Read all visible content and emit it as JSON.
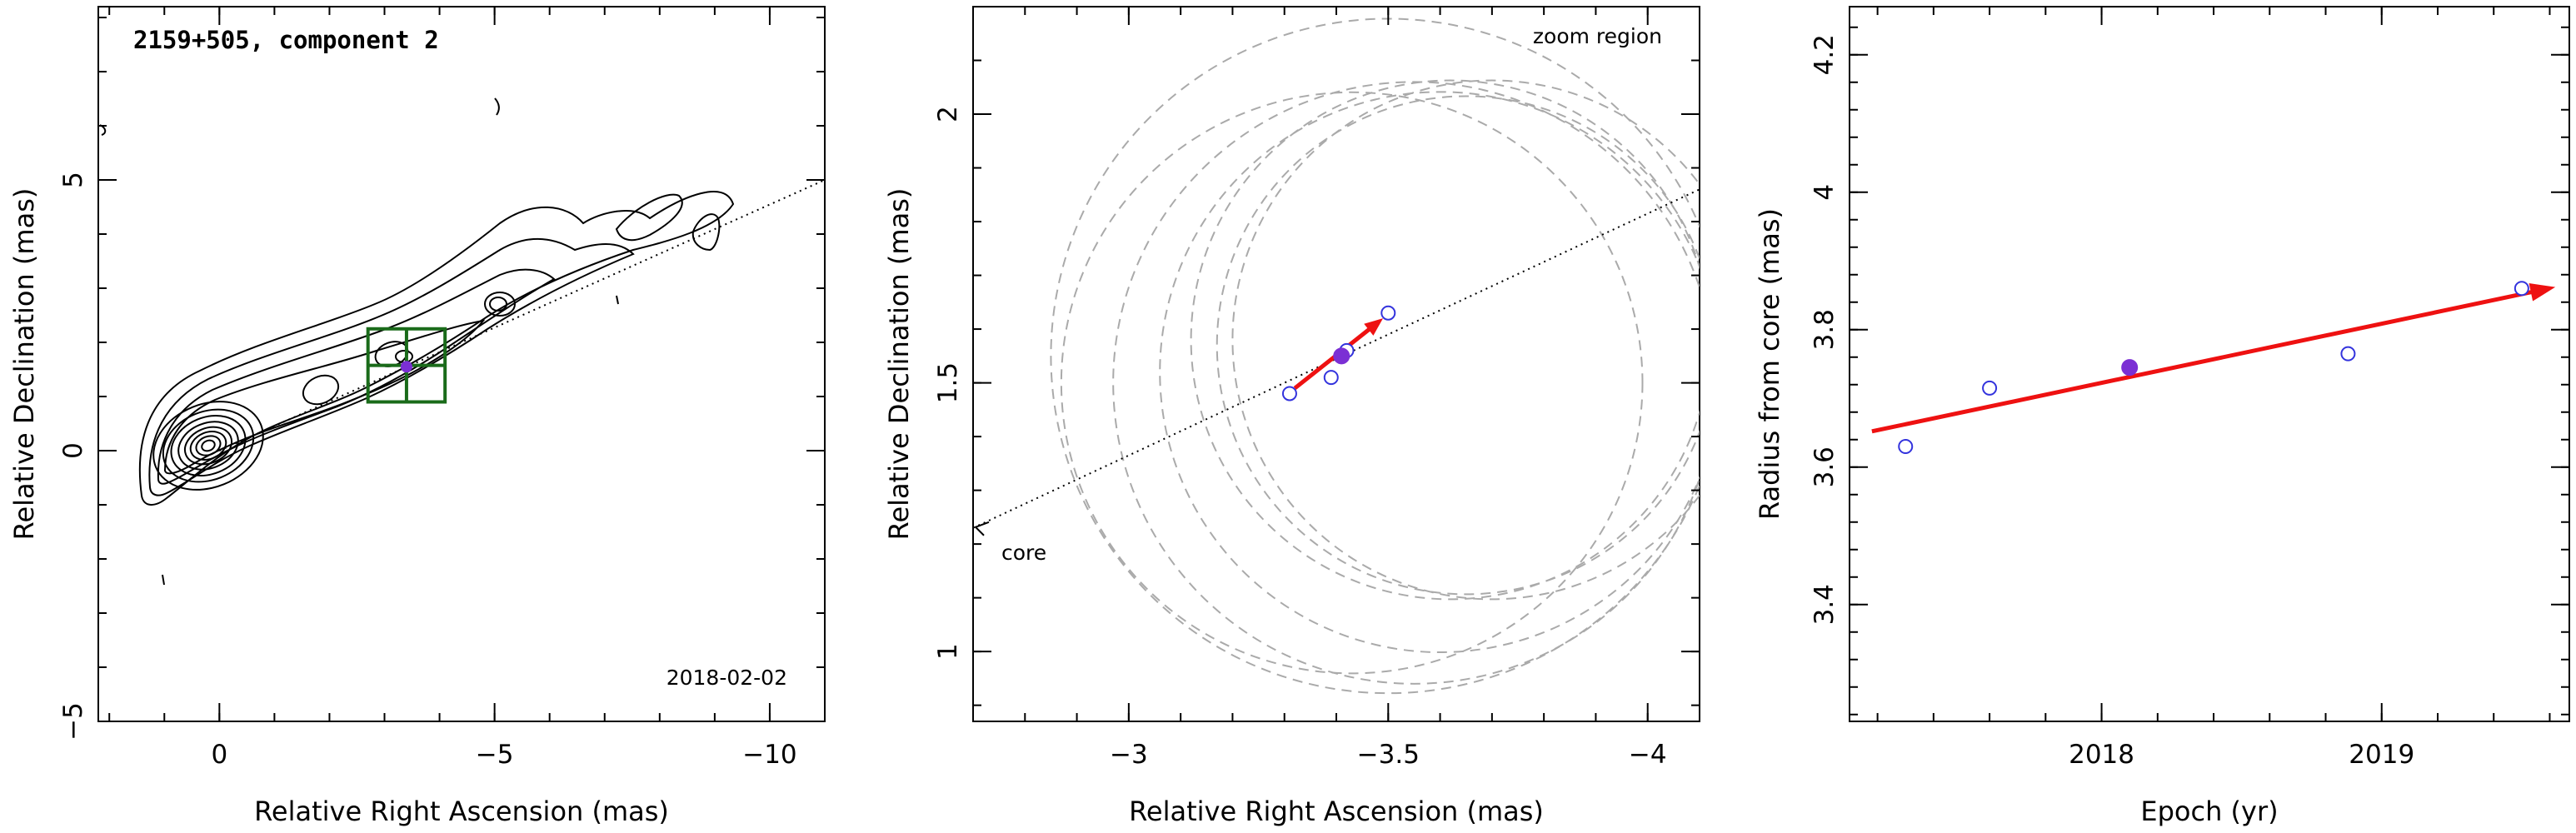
{
  "chart_data": [
    {
      "type": "scatter",
      "panel": "contour-map",
      "title": "2159+505, component 2",
      "date_label": "2018-02-02",
      "xlabel": "Relative Right Ascension (mas)",
      "ylabel": "Relative Declination (mas)",
      "xlim": [
        2.2,
        -11
      ],
      "ylim": [
        -5,
        8.2
      ],
      "xticks": [
        0,
        -5,
        -10
      ],
      "xtick_labels": [
        "0",
        "−5",
        "−10"
      ],
      "yticks": [
        -5,
        0,
        5
      ],
      "ytick_labels": [
        "−5",
        "0",
        "5"
      ],
      "jet_axis": {
        "from": [
          0,
          0
        ],
        "to": [
          -11,
          5.0
        ]
      },
      "component_position": {
        "x": -3.4,
        "y": 1.55
      },
      "zoom_box": {
        "x": [
          -2.7,
          -4.1
        ],
        "y": [
          0.9,
          2.25
        ]
      },
      "grid": false,
      "colors": {
        "contour": "#000000",
        "zoom_box": "#1a6b1a",
        "marker": "#7b2fd4"
      }
    },
    {
      "type": "scatter",
      "panel": "zoom-region",
      "region_label": "zoom region",
      "core_label": "core",
      "xlabel": "Relative Right Ascension (mas)",
      "ylabel": "Relative Declination (mas)",
      "xlim": [
        -2.7,
        -4.1
      ],
      "ylim": [
        0.87,
        2.2
      ],
      "xticks": [
        -3,
        -3.5,
        -4
      ],
      "xtick_labels": [
        "−3",
        "−3.5",
        "−4"
      ],
      "yticks": [
        1,
        1.5,
        2
      ],
      "ytick_labels": [
        "1",
        "1.5",
        "2"
      ],
      "series": [
        {
          "marker": "open-circle",
          "color": "#3333dd",
          "x": [
            -3.31,
            -3.39,
            -3.42,
            -3.5
          ],
          "y": [
            1.48,
            1.51,
            1.56,
            1.63
          ]
        },
        {
          "marker": "filled-circle",
          "color": "#7b2fd4",
          "x": [
            -3.41
          ],
          "y": [
            1.55
          ]
        }
      ],
      "velocity_vector": {
        "from": [
          -3.32,
          1.49
        ],
        "to": [
          -3.49,
          1.62
        ],
        "color": "#ee1111"
      },
      "jet_axis": {
        "from": [
          -2.7,
          1.23
        ],
        "to": [
          -4.1,
          1.86
        ]
      },
      "beam_circles": [
        {
          "x": -3.5,
          "y": 1.55,
          "r": 0.65
        },
        {
          "x": -3.55,
          "y": 1.5,
          "r": 0.58
        },
        {
          "x": -3.43,
          "y": 1.5,
          "r": 0.56
        },
        {
          "x": -3.6,
          "y": 1.52,
          "r": 0.54
        },
        {
          "x": -3.62,
          "y": 1.58,
          "r": 0.5
        },
        {
          "x": -3.65,
          "y": 1.57,
          "r": 0.48
        },
        {
          "x": -3.7,
          "y": 1.58,
          "r": 0.5
        }
      ],
      "grid": false,
      "colors": {
        "beam": "#aaaaaa",
        "axis": "#000000"
      }
    },
    {
      "type": "scatter",
      "panel": "radius-vs-epoch",
      "xlabel": "Epoch (yr)",
      "ylabel": "Radius from core (mas)",
      "xlim": [
        2017.1,
        2019.67
      ],
      "ylim": [
        3.23,
        4.27
      ],
      "xticks": [
        2018,
        2019
      ],
      "xtick_labels": [
        "2018",
        "2019"
      ],
      "yticks": [
        3.4,
        3.6,
        3.8,
        4.0,
        4.2
      ],
      "ytick_labels": [
        "3.4",
        "3.6",
        "3.8",
        "4",
        "4.2"
      ],
      "series": [
        {
          "marker": "open-circle",
          "color": "#3333dd",
          "x": [
            2017.3,
            2017.6,
            2018.88,
            2019.5
          ],
          "y": [
            3.63,
            3.715,
            3.765,
            3.86
          ]
        },
        {
          "marker": "filled-circle",
          "color": "#7b2fd4",
          "x": [
            2018.1
          ],
          "y": [
            3.745
          ]
        }
      ],
      "fit_line": {
        "from": [
          2017.18,
          3.652
        ],
        "to": [
          2019.62,
          3.862
        ],
        "color": "#ee1111"
      },
      "grid": false
    }
  ]
}
